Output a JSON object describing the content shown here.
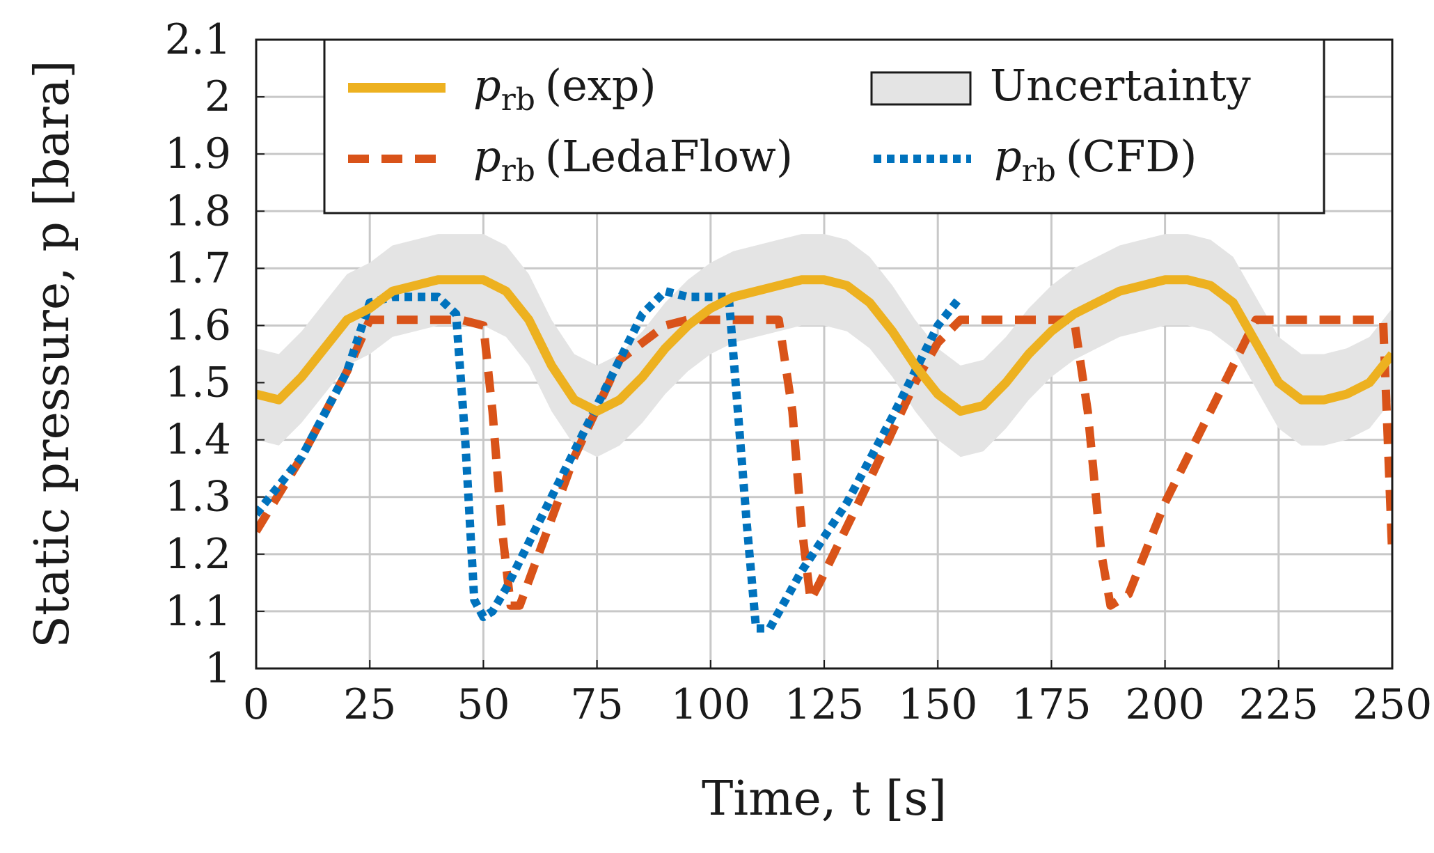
{
  "chart_data": {
    "type": "line",
    "title": "",
    "xlabel": "Time, t [s]",
    "ylabel": "Static pressure, p [bara]",
    "xlim": [
      0,
      250
    ],
    "ylim": [
      1.0,
      2.1
    ],
    "xticks": [
      0,
      25,
      50,
      75,
      100,
      125,
      150,
      175,
      200,
      225,
      250
    ],
    "yticks": [
      1.0,
      1.1,
      1.2,
      1.3,
      1.4,
      1.5,
      1.6,
      1.7,
      1.8,
      1.9,
      2.0,
      2.1
    ],
    "xtick_labels": [
      "0",
      "25",
      "50",
      "75",
      "100",
      "125",
      "150",
      "175",
      "200",
      "225",
      "250"
    ],
    "ytick_labels": [
      "1",
      "1.1",
      "1.2",
      "1.3",
      "1.4",
      "1.5",
      "1.6",
      "1.7",
      "1.8",
      "1.9",
      "2",
      "2.1"
    ],
    "grid": true,
    "legend_position": "top",
    "colors": {
      "exp": "#edb120",
      "ledaflow": "#d95319",
      "cfd": "#0072bd",
      "uncertainty_fill": "#e4e4e4",
      "uncertainty_edge": "#1a1a1a",
      "grid": "#c8c8c8"
    },
    "legend": {
      "exp": {
        "symbol": "p",
        "subscript": "rb",
        "suffix": "(exp)"
      },
      "uncertainty": {
        "label": "Uncertainty"
      },
      "ledaflow": {
        "symbol": "p",
        "subscript": "rb",
        "suffix": "(LedaFlow)"
      },
      "cfd": {
        "symbol": "p",
        "subscript": "rb",
        "suffix": "(CFD)"
      }
    },
    "series": [
      {
        "name": "p_rb (exp)",
        "style": "solid",
        "x": [
          0,
          5,
          10,
          15,
          20,
          25,
          30,
          35,
          40,
          45,
          50,
          55,
          60,
          65,
          70,
          75,
          80,
          85,
          90,
          95,
          100,
          105,
          110,
          115,
          120,
          125,
          130,
          135,
          140,
          145,
          150,
          155,
          160,
          165,
          170,
          175,
          180,
          185,
          190,
          195,
          200,
          205,
          210,
          215,
          220,
          225,
          230,
          235,
          240,
          245,
          250
        ],
        "values": [
          1.48,
          1.47,
          1.51,
          1.56,
          1.61,
          1.63,
          1.66,
          1.67,
          1.68,
          1.68,
          1.68,
          1.66,
          1.61,
          1.53,
          1.47,
          1.45,
          1.47,
          1.51,
          1.56,
          1.6,
          1.63,
          1.65,
          1.66,
          1.67,
          1.68,
          1.68,
          1.67,
          1.64,
          1.59,
          1.53,
          1.48,
          1.45,
          1.46,
          1.5,
          1.55,
          1.59,
          1.62,
          1.64,
          1.66,
          1.67,
          1.68,
          1.68,
          1.67,
          1.64,
          1.57,
          1.5,
          1.47,
          1.47,
          1.48,
          1.5,
          1.55
        ]
      },
      {
        "name": "p_rb (LedaFlow)",
        "style": "dashed",
        "x": [
          0,
          10,
          20,
          25,
          30,
          35,
          40,
          45,
          50,
          52,
          54,
          56,
          58,
          70,
          80,
          90,
          95,
          100,
          105,
          110,
          115,
          118,
          120,
          122,
          124,
          135,
          145,
          150,
          155,
          160,
          170,
          180,
          183,
          186,
          188,
          192,
          200,
          210,
          220,
          225,
          230,
          240,
          248,
          250
        ],
        "values": [
          1.24,
          1.37,
          1.52,
          1.61,
          1.61,
          1.61,
          1.61,
          1.61,
          1.6,
          1.45,
          1.25,
          1.11,
          1.11,
          1.37,
          1.54,
          1.6,
          1.61,
          1.61,
          1.61,
          1.61,
          1.61,
          1.45,
          1.25,
          1.12,
          1.15,
          1.33,
          1.5,
          1.57,
          1.61,
          1.61,
          1.61,
          1.61,
          1.45,
          1.2,
          1.11,
          1.13,
          1.29,
          1.45,
          1.61,
          1.61,
          1.61,
          1.61,
          1.61,
          1.2
        ]
      },
      {
        "name": "p_rb (CFD)",
        "style": "dotted",
        "x": [
          0,
          10,
          20,
          25,
          30,
          35,
          40,
          44,
          46,
          48,
          50,
          52,
          55,
          65,
          75,
          85,
          90,
          95,
          100,
          104,
          106,
          108,
          110,
          113,
          120,
          130,
          140,
          150,
          155
        ],
        "values": [
          1.27,
          1.37,
          1.52,
          1.64,
          1.65,
          1.65,
          1.65,
          1.62,
          1.4,
          1.12,
          1.09,
          1.1,
          1.14,
          1.3,
          1.46,
          1.62,
          1.66,
          1.65,
          1.65,
          1.65,
          1.45,
          1.25,
          1.07,
          1.07,
          1.17,
          1.29,
          1.44,
          1.6,
          1.65
        ]
      },
      {
        "name": "Uncertainty",
        "style": "band",
        "x": [
          0,
          5,
          10,
          15,
          20,
          25,
          30,
          35,
          40,
          45,
          50,
          55,
          60,
          65,
          70,
          75,
          80,
          85,
          90,
          95,
          100,
          105,
          110,
          115,
          120,
          125,
          130,
          135,
          140,
          145,
          150,
          155,
          160,
          165,
          170,
          175,
          180,
          185,
          190,
          195,
          200,
          205,
          210,
          215,
          220,
          225,
          230,
          235,
          240,
          245,
          250
        ],
        "lower": [
          1.4,
          1.39,
          1.43,
          1.48,
          1.53,
          1.55,
          1.58,
          1.59,
          1.6,
          1.6,
          1.6,
          1.58,
          1.53,
          1.45,
          1.39,
          1.37,
          1.39,
          1.43,
          1.48,
          1.52,
          1.55,
          1.57,
          1.58,
          1.59,
          1.6,
          1.6,
          1.59,
          1.56,
          1.51,
          1.45,
          1.4,
          1.37,
          1.38,
          1.42,
          1.47,
          1.51,
          1.54,
          1.56,
          1.58,
          1.59,
          1.6,
          1.6,
          1.59,
          1.56,
          1.49,
          1.42,
          1.39,
          1.39,
          1.4,
          1.42,
          1.47
        ],
        "upper": [
          1.56,
          1.55,
          1.59,
          1.64,
          1.69,
          1.71,
          1.74,
          1.75,
          1.76,
          1.76,
          1.76,
          1.74,
          1.69,
          1.61,
          1.55,
          1.53,
          1.55,
          1.59,
          1.64,
          1.68,
          1.71,
          1.73,
          1.74,
          1.75,
          1.76,
          1.76,
          1.75,
          1.72,
          1.67,
          1.61,
          1.56,
          1.53,
          1.54,
          1.58,
          1.63,
          1.67,
          1.7,
          1.72,
          1.74,
          1.75,
          1.76,
          1.76,
          1.75,
          1.72,
          1.65,
          1.58,
          1.55,
          1.55,
          1.56,
          1.58,
          1.63
        ]
      }
    ]
  }
}
